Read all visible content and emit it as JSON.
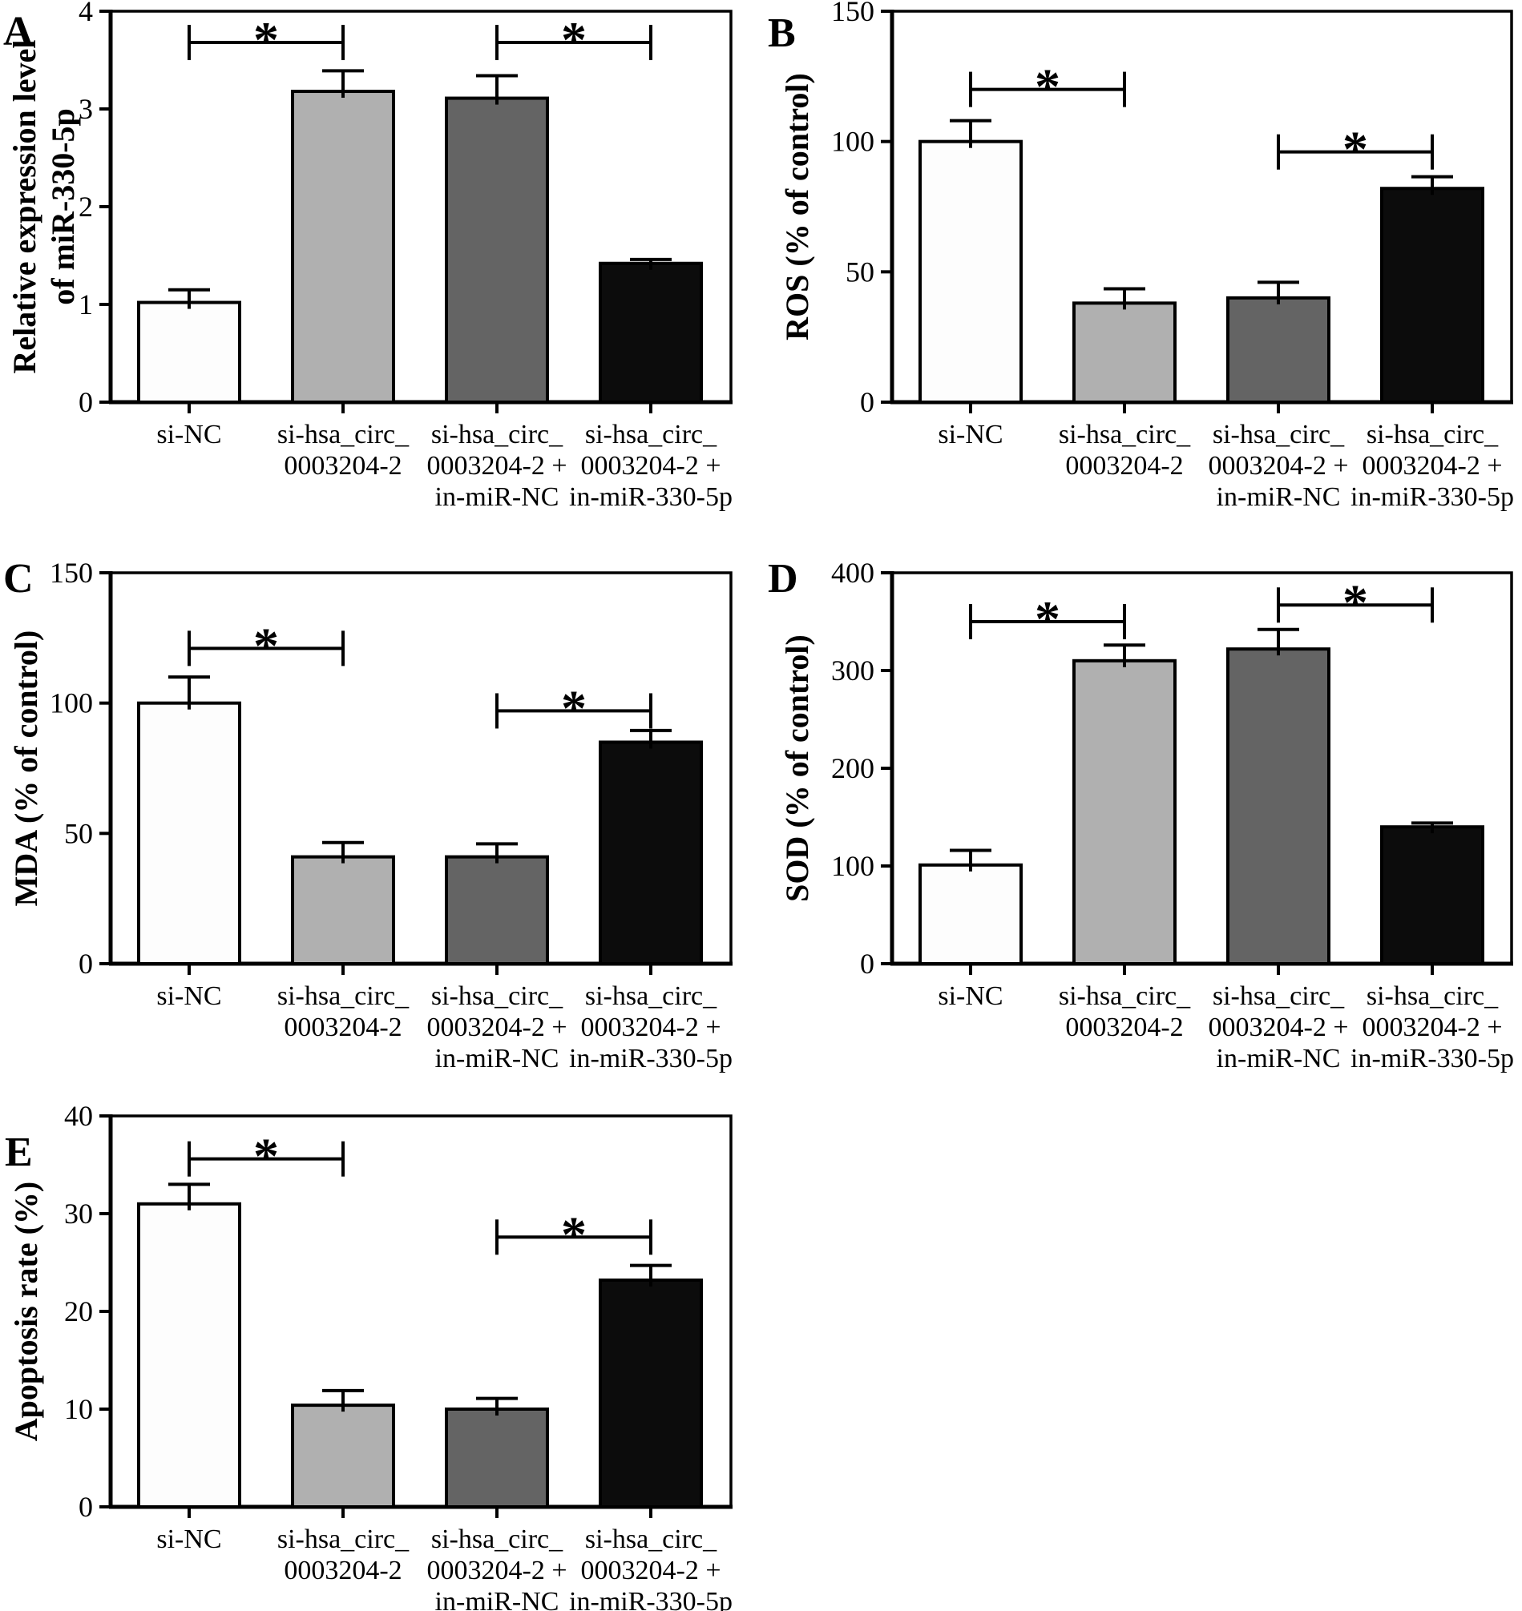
{
  "figure": {
    "background": "#ffffff",
    "description": "Five-panel bar chart figure with significance brackets",
    "panel_letters": [
      "A",
      "B",
      "C",
      "D",
      "E"
    ]
  },
  "bar_style": {
    "fill_colors": [
      "#fdfdfd",
      "#b0b0b0",
      "#646464",
      "#0c0c0c"
    ],
    "stroke_color": "#000000"
  },
  "categories_lines": [
    [
      "si-NC"
    ],
    [
      "si-hsa_circ_",
      "0003204-2"
    ],
    [
      "si-hsa_circ_",
      "0003204-2 +",
      "in-miR-NC"
    ],
    [
      "si-hsa_circ_",
      "0003204-2 +",
      "in-miR-330-5p"
    ]
  ],
  "chart_data": [
    {
      "panel": "A",
      "type": "bar",
      "ylabel": "Relative expression level of miR-330-5p",
      "ylabel_lines": [
        "Relative expression level",
        "of miR-330-5p"
      ],
      "categories": [
        "si-NC",
        "si-hsa_circ_0003204-2",
        "si-hsa_circ_0003204-2 + in-miR-NC",
        "si-hsa_circ_0003204-2 + in-miR-330-5p"
      ],
      "values": [
        1.02,
        3.18,
        3.11,
        1.42
      ],
      "errors": [
        0.13,
        0.21,
        0.23,
        0.04
      ],
      "ylim": [
        0,
        4
      ],
      "yticks": [
        0,
        1,
        2,
        3,
        4
      ],
      "grid": false,
      "significance": [
        {
          "pair": [
            0,
            1
          ],
          "label": "*",
          "line_y": 3.68
        },
        {
          "pair": [
            2,
            3
          ],
          "label": "*",
          "line_y": 3.68
        }
      ]
    },
    {
      "panel": "B",
      "type": "bar",
      "ylabel": "ROS (% of control)",
      "ylabel_lines": [
        "ROS (% of control)"
      ],
      "categories": [
        "si-NC",
        "si-hsa_circ_0003204-2",
        "si-hsa_circ_0003204-2 + in-miR-NC",
        "si-hsa_circ_0003204-2 + in-miR-330-5p"
      ],
      "values": [
        100,
        38,
        40,
        82
      ],
      "errors": [
        8,
        5.5,
        6,
        4.5
      ],
      "ylim": [
        0,
        150
      ],
      "yticks": [
        0,
        50,
        100,
        150
      ],
      "grid": false,
      "significance": [
        {
          "pair": [
            0,
            1
          ],
          "label": "*",
          "line_y": 120
        },
        {
          "pair": [
            2,
            3
          ],
          "label": "*",
          "line_y": 96
        }
      ]
    },
    {
      "panel": "C",
      "type": "bar",
      "ylabel": "MDA (% of control)",
      "ylabel_lines": [
        "MDA (% of control)"
      ],
      "categories": [
        "si-NC",
        "si-hsa_circ_0003204-2",
        "si-hsa_circ_0003204-2 + in-miR-NC",
        "si-hsa_circ_0003204-2 + in-miR-330-5p"
      ],
      "values": [
        100,
        41,
        41,
        85
      ],
      "errors": [
        10,
        5.5,
        5,
        4.5
      ],
      "ylim": [
        0,
        150
      ],
      "yticks": [
        0,
        50,
        100,
        150
      ],
      "grid": false,
      "significance": [
        {
          "pair": [
            0,
            1
          ],
          "label": "*",
          "line_y": 121
        },
        {
          "pair": [
            2,
            3
          ],
          "label": "*",
          "line_y": 97
        }
      ]
    },
    {
      "panel": "D",
      "type": "bar",
      "ylabel": "SOD (% of control)",
      "ylabel_lines": [
        "SOD (% of control)"
      ],
      "categories": [
        "si-NC",
        "si-hsa_circ_0003204-2",
        "si-hsa_circ_0003204-2 + in-miR-NC",
        "si-hsa_circ_0003204-2 + in-miR-330-5p"
      ],
      "values": [
        101,
        310,
        322,
        140
      ],
      "errors": [
        15,
        16,
        20,
        4
      ],
      "ylim": [
        0,
        400
      ],
      "yticks": [
        0,
        100,
        200,
        300,
        400
      ],
      "grid": false,
      "significance": [
        {
          "pair": [
            0,
            1
          ],
          "label": "*",
          "line_y": 350
        },
        {
          "pair": [
            2,
            3
          ],
          "label": "*",
          "line_y": 367
        }
      ]
    },
    {
      "panel": "E",
      "type": "bar",
      "ylabel": "Apoptosis rate (%)",
      "ylabel_lines": [
        "Apoptosis rate (%)"
      ],
      "categories": [
        "si-NC",
        "si-hsa_circ_0003204-2",
        "si-hsa_circ_0003204-2 + in-miR-NC",
        "si-hsa_circ_0003204-2 + in-miR-330-5p"
      ],
      "values": [
        31,
        10.4,
        10,
        23.2
      ],
      "errors": [
        2,
        1.5,
        1.1,
        1.5
      ],
      "ylim": [
        0,
        40
      ],
      "yticks": [
        0,
        10,
        20,
        30,
        40
      ],
      "grid": false,
      "significance": [
        {
          "pair": [
            0,
            1
          ],
          "label": "*",
          "line_y": 35.6
        },
        {
          "pair": [
            2,
            3
          ],
          "label": "*",
          "line_y": 27.6
        }
      ]
    }
  ]
}
